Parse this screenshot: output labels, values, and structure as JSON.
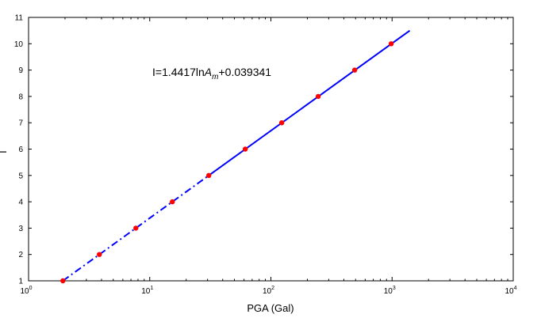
{
  "chart_data": {
    "type": "scatter",
    "xlabel": "PGA (Gal)",
    "ylabel": "I",
    "x_scale": "log",
    "xlim": [
      1,
      10000
    ],
    "ylim": [
      1,
      11
    ],
    "x_ticks": [
      {
        "base": "10",
        "exp": "0"
      },
      {
        "base": "10",
        "exp": "1"
      },
      {
        "base": "10",
        "exp": "2"
      },
      {
        "base": "10",
        "exp": "3"
      },
      {
        "base": "10",
        "exp": "4"
      }
    ],
    "y_ticks": [
      "1",
      "2",
      "3",
      "4",
      "5",
      "6",
      "7",
      "8",
      "9",
      "10",
      "11"
    ],
    "grid": false,
    "annotation": {
      "prefix": "I=1.4417ln",
      "var": "A",
      "sub": "m",
      "suffix": "+0.039341"
    },
    "points": {
      "color": "#ff0000",
      "x": [
        1.92,
        3.84,
        7.68,
        15.36,
        30.72,
        61.44,
        122.88,
        245.76,
        491.52,
        983.04
      ],
      "y": [
        1,
        2,
        3,
        4,
        5,
        6,
        7,
        8,
        9,
        10
      ]
    },
    "fit_line": {
      "color": "#0000ff",
      "dashed_segment": {
        "x": [
          1.92,
          30.72
        ],
        "y": [
          1,
          5
        ]
      },
      "solid_segment": {
        "x": [
          30.72,
          1400
        ],
        "y": [
          5,
          10.5
        ]
      }
    }
  }
}
